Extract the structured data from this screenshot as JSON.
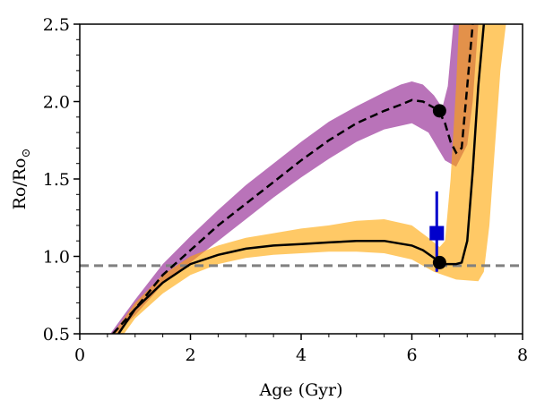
{
  "chart_data": {
    "type": "line",
    "xlabel": "Age (Gyr)",
    "ylabel_main": "Ro/Ro",
    "ylabel_sub": "⊙",
    "xlim": [
      0,
      8
    ],
    "ylim": [
      0.5,
      2.5
    ],
    "x_ticks": [
      0,
      2,
      4,
      6,
      8
    ],
    "x_tick_labels": [
      "0",
      "2",
      "4",
      "6",
      "8"
    ],
    "y_ticks": [
      0.5,
      1.0,
      1.5,
      2.0,
      2.5
    ],
    "y_tick_labels": [
      "0.5",
      "1.0",
      "1.5",
      "2.0",
      "2.5"
    ],
    "grid": false,
    "colors": {
      "purple": "#800080",
      "orange": "#ffa500",
      "dashed_ref": "#808080",
      "observed": "#0000cc",
      "median": "#000000"
    },
    "purple_median": [
      [
        0.6,
        0.5
      ],
      [
        1.0,
        0.66
      ],
      [
        1.5,
        0.88
      ],
      [
        2.0,
        1.04
      ],
      [
        2.5,
        1.2
      ],
      [
        3.0,
        1.34
      ],
      [
        3.5,
        1.48
      ],
      [
        4.0,
        1.62
      ],
      [
        4.5,
        1.75
      ],
      [
        5.0,
        1.86
      ],
      [
        5.5,
        1.94
      ],
      [
        5.8,
        1.98
      ],
      [
        6.0,
        2.01
      ],
      [
        6.2,
        2.0
      ],
      [
        6.4,
        1.96
      ],
      [
        6.5,
        1.93
      ],
      [
        6.6,
        1.86
      ],
      [
        6.7,
        1.74
      ],
      [
        6.8,
        1.67
      ],
      [
        6.9,
        1.7
      ],
      [
        7.0,
        2.1
      ],
      [
        7.1,
        2.5
      ]
    ],
    "orange_median": [
      [
        0.7,
        0.5
      ],
      [
        1.0,
        0.66
      ],
      [
        1.5,
        0.83
      ],
      [
        2.0,
        0.95
      ],
      [
        2.5,
        1.01
      ],
      [
        3.0,
        1.05
      ],
      [
        3.5,
        1.07
      ],
      [
        4.0,
        1.08
      ],
      [
        4.5,
        1.09
      ],
      [
        5.0,
        1.1
      ],
      [
        5.5,
        1.1
      ],
      [
        6.0,
        1.07
      ],
      [
        6.2,
        1.04
      ],
      [
        6.4,
        0.99
      ],
      [
        6.5,
        0.96
      ],
      [
        6.6,
        0.95
      ],
      [
        6.8,
        0.95
      ],
      [
        6.9,
        0.96
      ],
      [
        7.0,
        1.1
      ],
      [
        7.1,
        1.55
      ],
      [
        7.2,
        2.1
      ],
      [
        7.3,
        2.5
      ]
    ],
    "purple_band_upper": [
      [
        0.55,
        0.5
      ],
      [
        1.0,
        0.72
      ],
      [
        1.5,
        0.95
      ],
      [
        2.0,
        1.13
      ],
      [
        2.5,
        1.3
      ],
      [
        3.0,
        1.46
      ],
      [
        3.5,
        1.6
      ],
      [
        4.0,
        1.74
      ],
      [
        4.5,
        1.87
      ],
      [
        5.0,
        1.97
      ],
      [
        5.5,
        2.06
      ],
      [
        5.8,
        2.11
      ],
      [
        6.0,
        2.13
      ],
      [
        6.2,
        2.11
      ],
      [
        6.4,
        2.04
      ],
      [
        6.55,
        1.96
      ],
      [
        6.65,
        2.1
      ],
      [
        6.75,
        2.5
      ]
    ],
    "purple_band_lower": [
      [
        0.65,
        0.5
      ],
      [
        1.0,
        0.62
      ],
      [
        1.5,
        0.82
      ],
      [
        2.0,
        0.96
      ],
      [
        2.5,
        1.1
      ],
      [
        3.0,
        1.24
      ],
      [
        3.5,
        1.38
      ],
      [
        4.0,
        1.51
      ],
      [
        4.5,
        1.63
      ],
      [
        5.0,
        1.74
      ],
      [
        5.5,
        1.82
      ],
      [
        6.0,
        1.86
      ],
      [
        6.3,
        1.8
      ],
      [
        6.6,
        1.62
      ],
      [
        6.8,
        1.58
      ],
      [
        7.0,
        1.72
      ],
      [
        7.1,
        2.0
      ],
      [
        7.2,
        2.5
      ]
    ],
    "orange_band_upper": [
      [
        0.6,
        0.5
      ],
      [
        1.0,
        0.7
      ],
      [
        1.5,
        0.88
      ],
      [
        2.0,
        1.0
      ],
      [
        2.5,
        1.07
      ],
      [
        3.0,
        1.12
      ],
      [
        3.5,
        1.15
      ],
      [
        4.0,
        1.18
      ],
      [
        4.5,
        1.2
      ],
      [
        5.0,
        1.23
      ],
      [
        5.5,
        1.24
      ],
      [
        6.0,
        1.2
      ],
      [
        6.3,
        1.12
      ],
      [
        6.5,
        1.06
      ],
      [
        6.6,
        1.1
      ],
      [
        6.7,
        1.5
      ],
      [
        6.8,
        2.1
      ],
      [
        6.85,
        2.5
      ]
    ],
    "orange_band_lower": [
      [
        0.8,
        0.5
      ],
      [
        1.0,
        0.6
      ],
      [
        1.5,
        0.76
      ],
      [
        2.0,
        0.88
      ],
      [
        2.5,
        0.95
      ],
      [
        3.0,
        0.99
      ],
      [
        3.5,
        1.01
      ],
      [
        4.0,
        1.02
      ],
      [
        4.5,
        1.03
      ],
      [
        5.0,
        1.03
      ],
      [
        5.5,
        1.02
      ],
      [
        6.0,
        0.98
      ],
      [
        6.4,
        0.9
      ],
      [
        6.8,
        0.85
      ],
      [
        7.2,
        0.84
      ],
      [
        7.3,
        0.9
      ],
      [
        7.4,
        1.2
      ],
      [
        7.5,
        1.7
      ],
      [
        7.6,
        2.2
      ],
      [
        7.7,
        2.5
      ]
    ],
    "purple_marker": [
      6.5,
      1.94
    ],
    "orange_marker": [
      6.5,
      0.96
    ],
    "observed_point": {
      "x": 6.45,
      "y": 1.15,
      "yerr_low": 0.9,
      "yerr_high": 1.42
    },
    "reference_line_y": 0.94
  }
}
